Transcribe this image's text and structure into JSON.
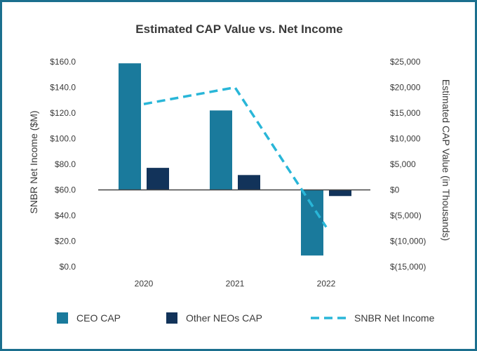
{
  "chart_data": {
    "type": "bar",
    "title": "Estimated CAP Value vs. Net Income",
    "categories": [
      "2020",
      "2021",
      "2022"
    ],
    "series": [
      {
        "name": "CEO CAP",
        "kind": "bar",
        "axis": "right",
        "color": "#1a7a9c",
        "values": [
          24700,
          15500,
          -12800
        ]
      },
      {
        "name": "Other NEOs CAP",
        "kind": "bar",
        "axis": "right",
        "color": "#12335a",
        "values": [
          4300,
          2900,
          -1200
        ]
      },
      {
        "name": "SNBR Net Income",
        "kind": "line",
        "axis": "left",
        "style": "dashed",
        "color": "#29b6d8",
        "values": [
          127.0,
          140.0,
          31.0
        ]
      }
    ],
    "y_left": {
      "label": "SNBR Net Income ($M)",
      "range": [
        0,
        160
      ],
      "ticks": [
        160,
        140,
        120,
        100,
        80,
        60,
        40,
        20,
        0
      ],
      "tick_labels": [
        "$160.0",
        "$140.0",
        "$120.0",
        "$100.0",
        "$80.0",
        "$60.0",
        "$40.0",
        "$20.0",
        "$0.0"
      ]
    },
    "y_right": {
      "label": "Estimated CAP Value (in Thousands)",
      "range": [
        -15000,
        25000
      ],
      "ticks": [
        25000,
        20000,
        15000,
        10000,
        5000,
        0,
        -5000,
        -10000,
        -15000
      ],
      "tick_labels": [
        "$25,000",
        "$20,000",
        "$15,000",
        "$10,000",
        "$5,000",
        "$0",
        "$(5,000)",
        "$(10,000)",
        "$(15,000)"
      ]
    },
    "grid": false,
    "legend_position": "bottom"
  }
}
